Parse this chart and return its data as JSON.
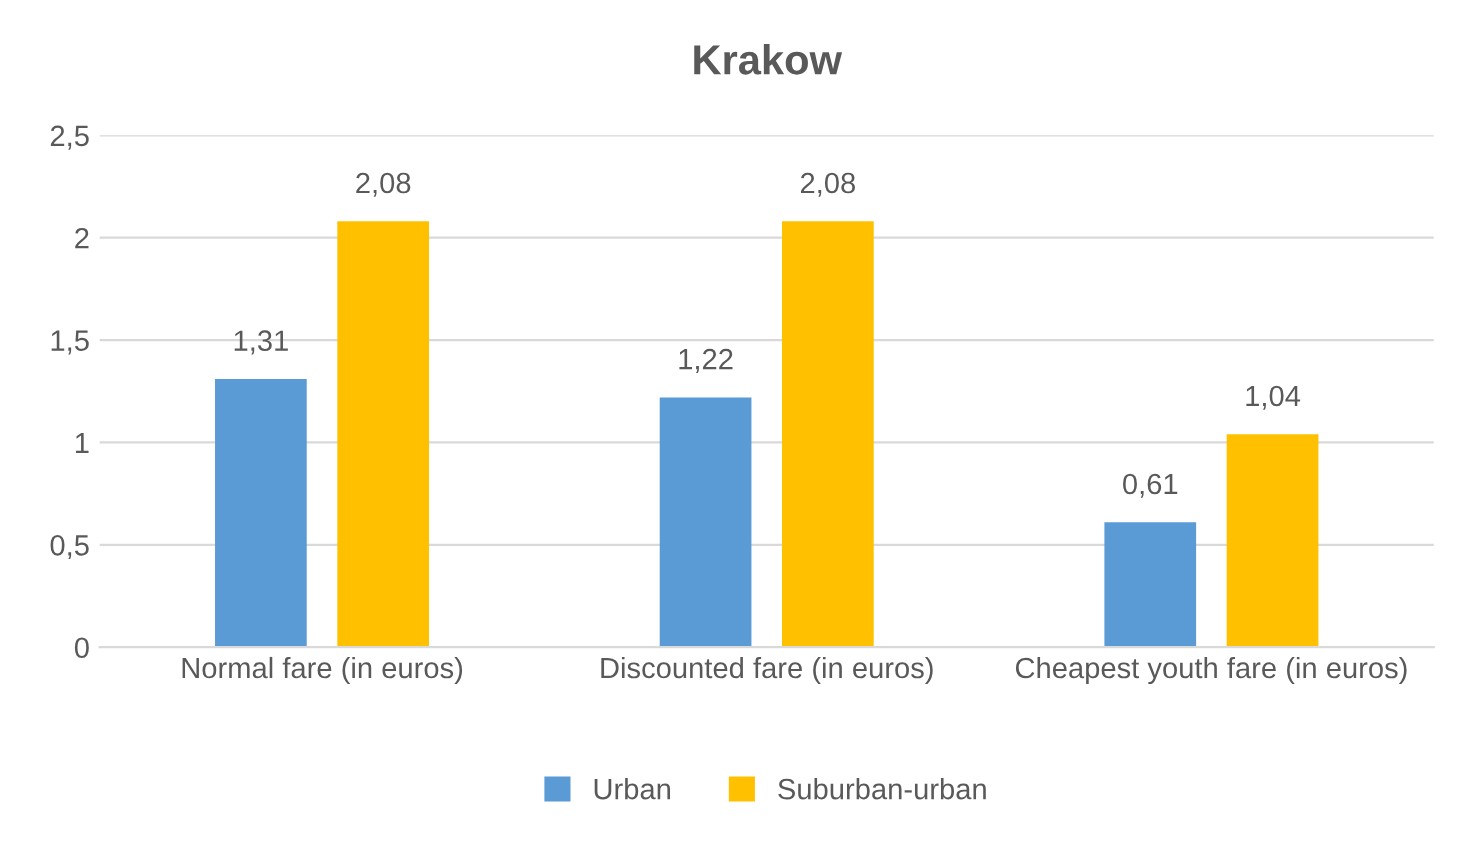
{
  "chart_data": {
    "type": "bar",
    "title": "Krakow",
    "categories": [
      "Normal fare (in euros)",
      "Discounted fare (in euros)",
      "Cheapest youth fare (in euros)"
    ],
    "series": [
      {
        "name": "Urban",
        "color": "#5b9bd5",
        "values": [
          1.31,
          1.22,
          0.61
        ],
        "value_labels": [
          "1,31",
          "1,22",
          "0,61"
        ]
      },
      {
        "name": "Suburban-urban",
        "color": "#ffc000",
        "values": [
          2.08,
          2.08,
          1.04
        ],
        "value_labels": [
          "2,08",
          "2,08",
          "1,04"
        ]
      }
    ],
    "ylim": [
      0,
      2.5
    ],
    "yticks": [
      0,
      {
        "value": 0.5,
        "label": "0,5"
      },
      1,
      {
        "value": 1.5,
        "label": "1,5"
      },
      2,
      {
        "value": 2.5,
        "label": "2,5"
      }
    ],
    "grid": "y",
    "legend": "bottom"
  }
}
